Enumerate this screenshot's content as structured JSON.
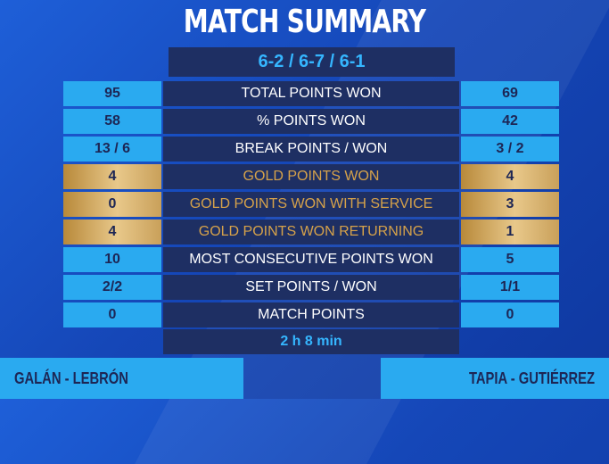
{
  "title": "MATCH SUMMARY",
  "score": "6-2 / 6-7 / 6-1",
  "rows": [
    {
      "left": "95",
      "label": "TOTAL POINTS WON",
      "right": "69"
    },
    {
      "left": "58",
      "label": "% POINTS WON",
      "right": "42"
    },
    {
      "left": "13 / 6",
      "label": "BREAK POINTS / WON",
      "right": "3 / 2"
    },
    {
      "left": "4",
      "label": "GOLD POINTS WON",
      "right": "4"
    },
    {
      "left": "0",
      "label": "GOLD POINTS WON WITH SERVICE",
      "right": "3"
    },
    {
      "left": "4",
      "label": "GOLD POINTS WON RETURNING",
      "right": "1"
    },
    {
      "left": "10",
      "label": "MOST CONSECUTIVE POINTS WON",
      "right": "5"
    },
    {
      "left": "2/2",
      "label": "SET POINTS / WON",
      "right": "1/1"
    },
    {
      "left": "0",
      "label": "MATCH POINTS",
      "right": "0"
    }
  ],
  "duration": "2 h 8 min",
  "teams": {
    "left": "GALÁN - LEBRÓN",
    "right": "TAPIA - GUTIÉRREZ"
  },
  "colors": {
    "background": "#1547b8",
    "panel": "#1e2f63",
    "accent": "#2aaaf0",
    "score_text": "#35b6ff",
    "gold": "#d6a24a"
  }
}
